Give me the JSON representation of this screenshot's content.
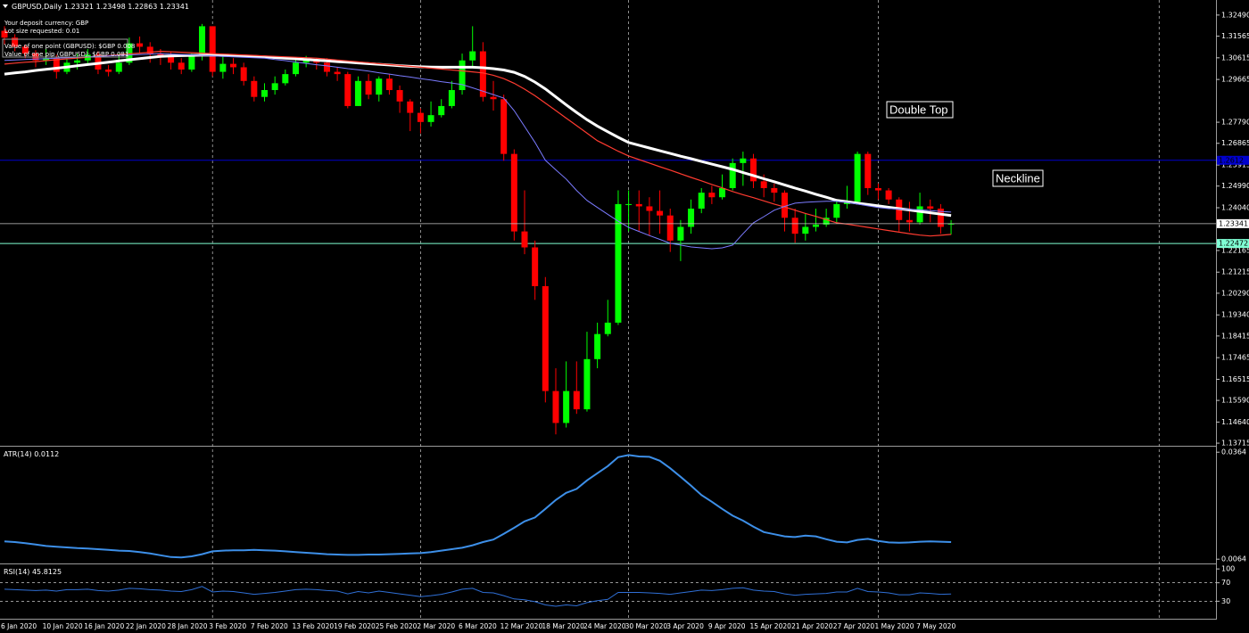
{
  "header": {
    "symbol": "GBPUSD,Daily"
  },
  "info": [
    "Your deposit currency: GBP",
    "Lot size requested: 0.01",
    "Value of one point (GBPUSD): $GBP 0.008",
    "Value of one pip (GBPUSD): $GBP 0.081"
  ],
  "annotations": [
    "Double Top",
    "Neckline"
  ],
  "chart_data": [
    {
      "type": "candlestick",
      "categories": [
        "6 Jan 2020",
        null,
        null,
        null,
        "10 Jan 2020",
        null,
        null,
        null,
        "16 Jan 2020",
        null,
        null,
        null,
        "22 Jan 2020",
        null,
        null,
        null,
        "28 Jan 2020",
        null,
        null,
        null,
        "3 Feb 2020",
        null,
        null,
        null,
        "7 Feb 2020",
        null,
        null,
        null,
        "13 Feb 2020",
        null,
        null,
        null,
        "19 Feb 2020",
        null,
        null,
        null,
        "25 Feb 2020",
        null,
        null,
        null,
        "2 Mar 2020",
        null,
        null,
        null,
        "6 Mar 2020",
        null,
        null,
        null,
        "12 Mar 2020",
        null,
        null,
        null,
        "18 Mar 2020",
        null,
        null,
        null,
        "24 Mar 2020",
        null,
        null,
        null,
        "30 Mar 2020",
        null,
        null,
        null,
        "3 Apr 2020",
        null,
        null,
        null,
        "9 Apr 2020",
        null,
        null,
        null,
        "15 Apr 2020",
        null,
        null,
        null,
        "21 Apr 2020",
        null,
        null,
        null,
        "27 Apr 2020",
        null,
        null,
        null,
        "1 May 2020",
        null,
        null,
        null,
        "7 May 2020",
        null,
        null,
        null
      ],
      "open": [
        1.318,
        1.315,
        1.311,
        1.308,
        1.305,
        1.306,
        1.3,
        1.304,
        1.305,
        1.3075,
        1.301,
        1.3,
        1.304,
        1.3125,
        1.311,
        1.308,
        1.307,
        1.304,
        1.301,
        1.307,
        1.32,
        1.3,
        1.3035,
        1.302,
        1.296,
        1.289,
        1.292,
        1.295,
        1.299,
        1.304,
        1.305,
        1.304,
        1.3,
        1.299,
        1.285,
        1.296,
        1.29,
        1.297,
        1.292,
        1.287,
        1.282,
        1.278,
        1.281,
        1.285,
        1.292,
        1.305,
        1.309,
        1.289,
        1.288,
        1.264,
        1.23,
        1.223,
        1.206,
        1.16,
        1.146,
        1.16,
        1.152,
        1.174,
        1.185,
        1.19,
        1.242,
        1.242,
        1.241,
        1.239,
        1.237,
        1.226,
        1.232,
        1.24,
        1.247,
        1.245,
        1.249,
        1.26,
        1.262,
        1.252,
        1.249,
        1.247,
        1.236,
        1.229,
        1.232,
        1.233,
        1.236,
        1.242,
        1.243,
        1.264,
        1.249,
        1.248,
        1.244,
        1.235,
        1.234,
        1.241,
        1.24,
        1.23321
      ],
      "high": [
        1.32,
        1.3165,
        1.312,
        1.3095,
        1.31,
        1.3075,
        1.306,
        1.308,
        1.31,
        1.309,
        1.303,
        1.308,
        1.315,
        1.3155,
        1.313,
        1.31,
        1.309,
        1.306,
        1.308,
        1.321,
        1.32,
        1.307,
        1.306,
        1.304,
        1.298,
        1.295,
        1.298,
        1.301,
        1.306,
        1.307,
        1.306,
        1.306,
        1.302,
        1.3,
        1.298,
        1.299,
        1.298,
        1.299,
        1.294,
        1.288,
        1.284,
        1.287,
        1.288,
        1.296,
        1.308,
        1.32,
        1.313,
        1.296,
        1.29,
        1.266,
        1.248,
        1.226,
        1.21,
        1.17,
        1.173,
        1.173,
        1.186,
        1.19,
        1.2,
        1.248,
        1.248,
        1.248,
        1.245,
        1.248,
        1.24,
        1.235,
        1.244,
        1.249,
        1.25,
        1.255,
        1.262,
        1.265,
        1.264,
        1.255,
        1.251,
        1.248,
        1.24,
        1.238,
        1.24,
        1.24,
        1.244,
        1.25,
        1.265,
        1.265,
        1.251,
        1.249,
        1.245,
        1.243,
        1.247,
        1.244,
        1.242,
        1.23498
      ],
      "low": [
        1.312,
        1.309,
        1.306,
        1.302,
        1.303,
        1.297,
        1.299,
        1.301,
        1.303,
        1.299,
        1.298,
        1.299,
        1.303,
        1.308,
        1.304,
        1.303,
        1.301,
        1.299,
        1.3,
        1.305,
        1.298,
        1.297,
        1.299,
        1.294,
        1.287,
        1.287,
        1.29,
        1.294,
        1.298,
        1.302,
        1.301,
        1.298,
        1.296,
        1.284,
        1.285,
        1.288,
        1.287,
        1.29,
        1.282,
        1.274,
        1.273,
        1.276,
        1.28,
        1.284,
        1.29,
        1.302,
        1.287,
        1.283,
        1.261,
        1.226,
        1.22,
        1.2,
        1.155,
        1.141,
        1.144,
        1.15,
        1.151,
        1.17,
        1.184,
        1.189,
        1.23,
        1.23,
        1.228,
        1.229,
        1.221,
        1.217,
        1.229,
        1.238,
        1.242,
        1.244,
        1.248,
        1.25,
        1.249,
        1.245,
        1.243,
        1.23,
        1.225,
        1.226,
        1.23,
        1.232,
        1.234,
        1.24,
        1.242,
        1.246,
        1.244,
        1.242,
        1.23,
        1.23,
        1.233,
        1.234,
        1.229,
        1.22863
      ],
      "close": [
        1.315,
        1.311,
        1.308,
        1.305,
        1.306,
        1.3,
        1.304,
        1.305,
        1.3075,
        1.301,
        1.3,
        1.304,
        1.3125,
        1.311,
        1.308,
        1.307,
        1.304,
        1.301,
        1.307,
        1.32,
        1.3,
        1.3035,
        1.302,
        1.296,
        1.289,
        1.292,
        1.295,
        1.299,
        1.304,
        1.305,
        1.304,
        1.3,
        1.299,
        1.285,
        1.296,
        1.29,
        1.297,
        1.292,
        1.287,
        1.282,
        1.278,
        1.281,
        1.285,
        1.292,
        1.305,
        1.309,
        1.289,
        1.288,
        1.264,
        1.23,
        1.223,
        1.206,
        1.16,
        1.146,
        1.16,
        1.152,
        1.174,
        1.185,
        1.19,
        1.242,
        1.242,
        1.241,
        1.239,
        1.237,
        1.226,
        1.232,
        1.24,
        1.247,
        1.245,
        1.249,
        1.26,
        1.262,
        1.252,
        1.249,
        1.247,
        1.236,
        1.229,
        1.232,
        1.233,
        1.236,
        1.242,
        1.243,
        1.264,
        1.249,
        1.248,
        1.244,
        1.235,
        1.234,
        1.241,
        1.24,
        1.232,
        1.23341
      ],
      "up_color": "#00ff00",
      "down_color": "#ff0000",
      "price_line_color": "#c8c8c8",
      "series": [
        {
          "color": "#ffffff",
          "width": 3,
          "values": [
            1.299,
            1.2995,
            1.3,
            1.3006,
            1.3011,
            1.3016,
            1.3021,
            1.3027,
            1.3032,
            1.3037,
            1.3042,
            1.3048,
            1.3053,
            1.3058,
            1.3063,
            1.3068,
            1.307,
            1.3071,
            1.3072,
            1.3073,
            1.3073,
            1.3072,
            1.3071,
            1.307,
            1.3068,
            1.3066,
            1.3063,
            1.306,
            1.3057,
            1.3054,
            1.3051,
            1.3048,
            1.3045,
            1.3042,
            1.3039,
            1.3036,
            1.3033,
            1.303,
            1.3027,
            1.3024,
            1.3022,
            1.3021,
            1.302,
            1.302,
            1.302,
            1.302,
            1.3018,
            1.3014,
            1.3008,
            1.2998,
            1.298,
            1.2955,
            1.2925,
            1.289,
            1.2855,
            1.2822,
            1.279,
            1.2762,
            1.2737,
            1.2713,
            1.269,
            1.2678,
            1.2666,
            1.2654,
            1.2642,
            1.263,
            1.2619,
            1.2607,
            1.2595,
            1.2584,
            1.2572,
            1.2558,
            1.2545,
            1.2531,
            1.2518,
            1.2504,
            1.249,
            1.2477,
            1.2463,
            1.245,
            1.2436,
            1.243,
            1.2424,
            1.2418,
            1.2412,
            1.2406,
            1.24,
            1.2394,
            1.2388,
            1.2382,
            1.2376,
            1.237
          ]
        },
        {
          "color": "#ff3b30",
          "width": 1.2,
          "values": [
            1.3034,
            1.3038,
            1.3042,
            1.3045,
            1.3049,
            1.3053,
            1.3057,
            1.306,
            1.3064,
            1.3068,
            1.3071,
            1.3075,
            1.3079,
            1.3082,
            1.3086,
            1.309,
            1.3088,
            1.3086,
            1.3084,
            1.3082,
            1.308,
            1.3078,
            1.3076,
            1.3074,
            1.3072,
            1.307,
            1.3068,
            1.3066,
            1.3064,
            1.3062,
            1.306,
            1.3056,
            1.3052,
            1.3048,
            1.3044,
            1.304,
            1.3036,
            1.3032,
            1.3028,
            1.3024,
            1.302,
            1.3016,
            1.3012,
            1.3008,
            1.3004,
            1.3,
            1.2995,
            1.2985,
            1.297,
            1.295,
            1.2924,
            1.2895,
            1.2863,
            1.283,
            1.2797,
            1.2764,
            1.2731,
            1.2698,
            1.2675,
            1.2652,
            1.2631,
            1.2615,
            1.26,
            1.2584,
            1.2569,
            1.2553,
            1.2537,
            1.2522,
            1.2506,
            1.2491,
            1.2475,
            1.2461,
            1.2448,
            1.2434,
            1.242,
            1.2407,
            1.2393,
            1.2379,
            1.2366,
            1.2352,
            1.2338,
            1.2332,
            1.2325,
            1.2318,
            1.2311,
            1.2304,
            1.2297,
            1.229,
            1.2284,
            1.228,
            1.2283,
            1.2287
          ]
        },
        {
          "color": "#7b7bff",
          "width": 1,
          "values": [
            1.305,
            1.3052,
            1.3054,
            1.3056,
            1.3058,
            1.306,
            1.3062,
            1.3064,
            1.3066,
            1.3068,
            1.307,
            1.3072,
            1.3074,
            1.3076,
            1.3078,
            1.308,
            1.3078,
            1.3076,
            1.3074,
            1.3072,
            1.307,
            1.3068,
            1.3066,
            1.3064,
            1.3062,
            1.306,
            1.3054,
            1.3049,
            1.3043,
            1.3037,
            1.3031,
            1.3026,
            1.302,
            1.3014,
            1.3009,
            1.3003,
            1.2996,
            1.299,
            1.2983,
            1.2977,
            1.297,
            1.2964,
            1.2957,
            1.2951,
            1.2944,
            1.293,
            1.2915,
            1.29,
            1.2885,
            1.283,
            1.276,
            1.269,
            1.2612,
            1.257,
            1.253,
            1.248,
            1.2436,
            1.2405,
            1.2375,
            1.2345,
            1.2318,
            1.23,
            1.2282,
            1.2265,
            1.2248,
            1.224,
            1.2232,
            1.2228,
            1.2224,
            1.2228,
            1.224,
            1.229,
            1.2338,
            1.2365,
            1.2393,
            1.241,
            1.2424,
            1.2428,
            1.243,
            1.2432,
            1.2432,
            1.2428,
            1.242,
            1.2412,
            1.2405,
            1.24,
            1.2398,
            1.2396,
            1.2395,
            1.2392,
            1.2388,
            1.2385
          ]
        }
      ],
      "levels": [
        {
          "value": 1.22472,
          "color": "#7fffd4"
        },
        {
          "value": 1.2612,
          "color": "#0000cd"
        }
      ],
      "ylim": [
        1.136,
        1.3315
      ],
      "yticks": [
        {
          "value": 1.3249,
          "label": "1.32490"
        },
        {
          "value": 1.31565,
          "label": "1.31565"
        },
        {
          "value": 1.30615,
          "label": "1.30615"
        },
        {
          "value": 1.29665,
          "label": "1.29665"
        },
        {
          "value": 1.2779,
          "label": "1.27790"
        },
        {
          "value": 1.26865,
          "label": "1.26865"
        },
        {
          "value": 1.25915,
          "label": "1.25915"
        },
        {
          "value": 1.2499,
          "label": "1.24990"
        },
        {
          "value": 1.2404,
          "label": "1.24040"
        },
        {
          "value": 1.22165,
          "label": "1.22165"
        },
        {
          "value": 1.21215,
          "label": "1.21215"
        },
        {
          "value": 1.2029,
          "label": "1.20290"
        },
        {
          "value": 1.1934,
          "label": "1.19340"
        },
        {
          "value": 1.18415,
          "label": "1.18415"
        },
        {
          "value": 1.17465,
          "label": "1.17465"
        },
        {
          "value": 1.16515,
          "label": "1.16515"
        },
        {
          "value": 1.1559,
          "label": "1.15590"
        },
        {
          "value": 1.1464,
          "label": "1.14640"
        },
        {
          "value": 1.13715,
          "label": "1.13715"
        }
      ]
    },
    {
      "type": "line",
      "title": "ATR(14)",
      "color": "#3d8fe8",
      "values": [
        0.0114,
        0.0112,
        0.0109,
        0.0105,
        0.0101,
        0.0099,
        0.0097,
        0.0095,
        0.0094,
        0.0092,
        0.009,
        0.0088,
        0.0087,
        0.0084,
        0.008,
        0.0075,
        0.007,
        0.0069,
        0.0072,
        0.0078,
        0.0086,
        0.0088,
        0.0089,
        0.0089,
        0.009,
        0.0089,
        0.0088,
        0.0086,
        0.0084,
        0.0082,
        0.008,
        0.0078,
        0.0077,
        0.0076,
        0.0076,
        0.0077,
        0.0077,
        0.0078,
        0.0079,
        0.008,
        0.0081,
        0.0084,
        0.0088,
        0.0092,
        0.0096,
        0.0103,
        0.0112,
        0.0119,
        0.0135,
        0.0152,
        0.017,
        0.0181,
        0.0205,
        0.023,
        0.025,
        0.0261,
        0.0285,
        0.0305,
        0.0325,
        0.035,
        0.0356,
        0.0352,
        0.0351,
        0.034,
        0.0319,
        0.0295,
        0.027,
        0.0244,
        0.0225,
        0.0205,
        0.0186,
        0.0172,
        0.0155,
        0.014,
        0.0134,
        0.0128,
        0.0126,
        0.013,
        0.0128,
        0.012,
        0.0113,
        0.0111,
        0.0118,
        0.0121,
        0.0115,
        0.0111,
        0.011,
        0.0111,
        0.0113,
        0.0114,
        0.0113,
        0.0112
      ],
      "ylim": [
        0.0052,
        0.0377
      ],
      "yticks": [
        0.0364,
        0.0064
      ]
    },
    {
      "type": "line",
      "title": "RSI(14)",
      "color": "#2f6fd6",
      "values": [
        56,
        55,
        54,
        53,
        54,
        52,
        55,
        55,
        56,
        53,
        52,
        54,
        58,
        57,
        55,
        54,
        52,
        51,
        55,
        62,
        50,
        52,
        51,
        48,
        45,
        47,
        49,
        52,
        55,
        56,
        55,
        53,
        52,
        46,
        51,
        48,
        52,
        49,
        46,
        43,
        40,
        42,
        45,
        50,
        56,
        58,
        49,
        48,
        42,
        35,
        33,
        29,
        22,
        19,
        22,
        20,
        27,
        31,
        34,
        49,
        49,
        49,
        48,
        47,
        45,
        48,
        51,
        54,
        53,
        55,
        58,
        59,
        54,
        52,
        51,
        46,
        43,
        45,
        46,
        47,
        50,
        50,
        58,
        51,
        50,
        48,
        44,
        44,
        48,
        47,
        45,
        45.8125
      ],
      "levels": [
        70,
        30
      ],
      "ylim": [
        -8,
        108
      ],
      "yticks": [
        100,
        70,
        30
      ]
    }
  ]
}
